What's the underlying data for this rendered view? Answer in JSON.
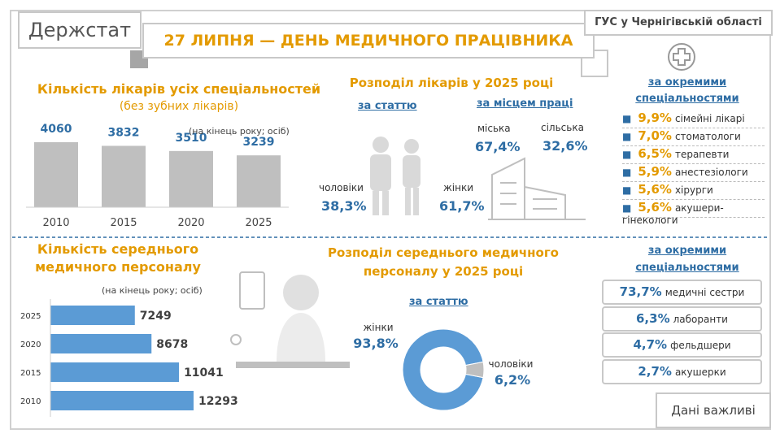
{
  "header": {
    "brand": "Держстат",
    "title": "27 ЛИПНЯ — ДЕНЬ МЕДИЧНОГО ПРАЦІВНИКА",
    "org": "ГУС у Чернігівській області"
  },
  "chart_data": [
    {
      "type": "bar",
      "title": "Кількість лікарів усіх спеціальностей",
      "subtitle": "(без зубних лікарів)",
      "note": "(на кінець року; осіб)",
      "categories": [
        "2010",
        "2015",
        "2020",
        "2025"
      ],
      "values": [
        4060,
        3832,
        3510,
        3239
      ],
      "color": "#bfbfbf"
    },
    {
      "type": "barh",
      "title": "Кількість середнього медичного персоналу",
      "note": "(на кінець року; осіб)",
      "categories": [
        "2025",
        "2020",
        "2015",
        "2010"
      ],
      "values": [
        7249,
        8678,
        11041,
        12293
      ],
      "color": "#5b9bd5"
    },
    {
      "type": "pie",
      "donut": true,
      "title": "Розподіл середнього медичного персоналу у 2025 році",
      "subtitle": "за статтю",
      "categories": [
        "жінки",
        "чоловіки"
      ],
      "values": [
        93.8,
        6.2
      ],
      "value_labels": [
        "93,8%",
        "6,2%"
      ],
      "colors": [
        "#5b9bd5",
        "#bfbfbf"
      ]
    }
  ],
  "doctors_distribution": {
    "title": "Розподіл лікарів у 2025 році",
    "by_sex": {
      "heading": "за статтю",
      "items": [
        {
          "label": "чоловіки",
          "value": "38,3%"
        },
        {
          "label": "жінки",
          "value": "61,7%"
        }
      ]
    },
    "by_place": {
      "heading": "за місцем праці",
      "items": [
        {
          "label": "міська",
          "value": "67,4%"
        },
        {
          "label": "сільська",
          "value": "32,6%"
        }
      ]
    }
  },
  "doctor_specialties": {
    "heading": "за окремими спеціальностями",
    "items": [
      {
        "value": "9,9%",
        "label": "сімейні лікарі"
      },
      {
        "value": "7,0%",
        "label": "стоматологи"
      },
      {
        "value": "6,5%",
        "label": "терапевти"
      },
      {
        "value": "5,9%",
        "label": "анестезіологи"
      },
      {
        "value": "5,6%",
        "label": "хірурги"
      },
      {
        "value": "5,6%",
        "label": "акушери-гінекологи"
      }
    ]
  },
  "nurse_specialties": {
    "heading": "за окремими спеціальностями",
    "items": [
      {
        "value": "73,7%",
        "label": "медичні сестри"
      },
      {
        "value": "6,3%",
        "label": "лаборанти"
      },
      {
        "value": "4,7%",
        "label": "фельдшери"
      },
      {
        "value": "2,7%",
        "label": "акушерки"
      }
    ]
  },
  "footer": "Дані важливі"
}
